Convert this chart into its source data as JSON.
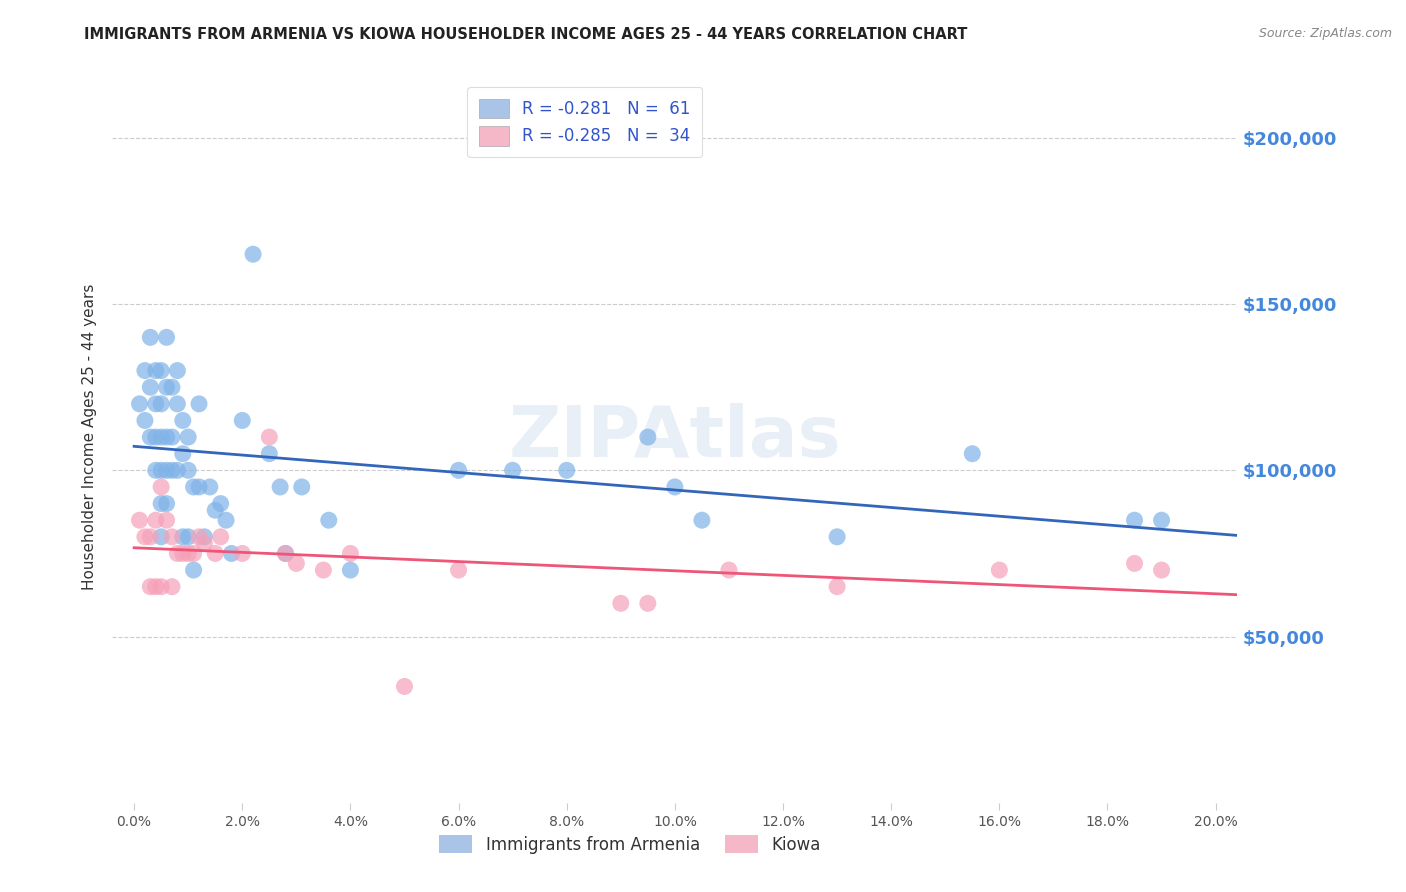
{
  "title": "IMMIGRANTS FROM ARMENIA VS KIOWA HOUSEHOLDER INCOME AGES 25 - 44 YEARS CORRELATION CHART",
  "source": "Source: ZipAtlas.com",
  "xlabel_ticks": [
    "0.0%",
    "2.0%",
    "4.0%",
    "6.0%",
    "8.0%",
    "10.0%",
    "12.0%",
    "14.0%",
    "16.0%",
    "18.0%",
    "20.0%"
  ],
  "xlabel_vals": [
    0.0,
    0.02,
    0.04,
    0.06,
    0.08,
    0.1,
    0.12,
    0.14,
    0.16,
    0.18,
    0.2
  ],
  "ylabel": "Householder Income Ages 25 - 44 years",
  "ylabel_ticks": [
    "$50,000",
    "$100,000",
    "$150,000",
    "$200,000"
  ],
  "ylabel_vals": [
    50000,
    100000,
    150000,
    200000
  ],
  "xlim": [
    -0.004,
    0.204
  ],
  "ylim": [
    0,
    220000
  ],
  "ylim_grid": [
    50000,
    100000,
    150000,
    200000
  ],
  "grid_color": "#cccccc",
  "background_color": "#ffffff",
  "watermark": "ZIPAtlas",
  "legend_R1": "R = -0.281",
  "legend_N1": "N =  61",
  "legend_R2": "R = -0.285",
  "legend_N2": "N =  34",
  "legend_color_blue": "#aac4e8",
  "legend_color_pink": "#f5b8c8",
  "series1_color": "#7fb3e8",
  "series2_color": "#f5a0b8",
  "trendline1_color": "#3366bb",
  "trendline2_color": "#ee5577",
  "series1_x": [
    0.001,
    0.002,
    0.002,
    0.003,
    0.003,
    0.003,
    0.004,
    0.004,
    0.004,
    0.004,
    0.005,
    0.005,
    0.005,
    0.005,
    0.005,
    0.005,
    0.006,
    0.006,
    0.006,
    0.006,
    0.006,
    0.007,
    0.007,
    0.007,
    0.008,
    0.008,
    0.008,
    0.009,
    0.009,
    0.009,
    0.01,
    0.01,
    0.01,
    0.011,
    0.011,
    0.012,
    0.012,
    0.013,
    0.014,
    0.015,
    0.016,
    0.017,
    0.018,
    0.02,
    0.022,
    0.025,
    0.027,
    0.028,
    0.031,
    0.036,
    0.04,
    0.06,
    0.07,
    0.08,
    0.095,
    0.1,
    0.105,
    0.13,
    0.155,
    0.185,
    0.19
  ],
  "series1_y": [
    120000,
    130000,
    115000,
    140000,
    125000,
    110000,
    130000,
    120000,
    110000,
    100000,
    130000,
    120000,
    110000,
    100000,
    90000,
    80000,
    140000,
    125000,
    110000,
    100000,
    90000,
    125000,
    110000,
    100000,
    130000,
    120000,
    100000,
    115000,
    105000,
    80000,
    110000,
    100000,
    80000,
    95000,
    70000,
    120000,
    95000,
    80000,
    95000,
    88000,
    90000,
    85000,
    75000,
    115000,
    165000,
    105000,
    95000,
    75000,
    95000,
    85000,
    70000,
    100000,
    100000,
    100000,
    110000,
    95000,
    85000,
    80000,
    105000,
    85000,
    85000
  ],
  "series2_x": [
    0.001,
    0.002,
    0.003,
    0.003,
    0.004,
    0.004,
    0.005,
    0.005,
    0.006,
    0.007,
    0.007,
    0.008,
    0.009,
    0.01,
    0.011,
    0.012,
    0.013,
    0.015,
    0.016,
    0.02,
    0.025,
    0.028,
    0.03,
    0.035,
    0.04,
    0.05,
    0.06,
    0.09,
    0.095,
    0.11,
    0.13,
    0.16,
    0.185,
    0.19
  ],
  "series2_y": [
    85000,
    80000,
    80000,
    65000,
    85000,
    65000,
    95000,
    65000,
    85000,
    80000,
    65000,
    75000,
    75000,
    75000,
    75000,
    80000,
    78000,
    75000,
    80000,
    75000,
    110000,
    75000,
    72000,
    70000,
    75000,
    35000,
    70000,
    60000,
    60000,
    70000,
    65000,
    70000,
    72000,
    70000
  ]
}
